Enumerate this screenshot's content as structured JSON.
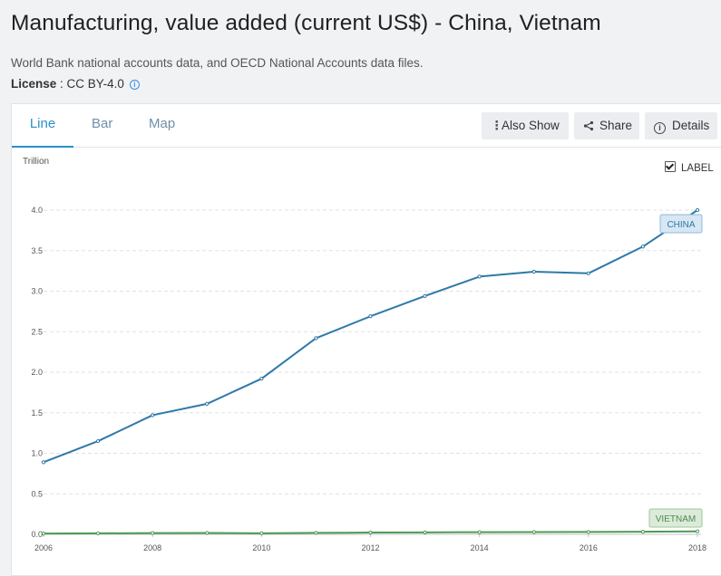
{
  "header": {
    "title": "Manufacturing, value added (current US$) - China, Vietnam",
    "source": "World Bank national accounts data, and OECD National Accounts data files.",
    "license_label": "License",
    "license_value": ": CC BY-4.0"
  },
  "tabs": [
    {
      "label": "Line",
      "active": true
    },
    {
      "label": "Bar",
      "active": false
    },
    {
      "label": "Map",
      "active": false
    }
  ],
  "toolbar": {
    "also_show": "Also Show",
    "share": "Share",
    "details": "Details"
  },
  "label_toggle": {
    "text": "LABEL",
    "checked": true
  },
  "colors": {
    "china": "#2e79a8",
    "vietnam": "#4e9a52",
    "active_tab": "#2b8fc9"
  },
  "chart_data": {
    "type": "line",
    "ylabel": "Trillion",
    "ylim": [
      0,
      4.0
    ],
    "y_ticks": [
      "0.0",
      "0.5",
      "1.0",
      "1.5",
      "2.0",
      "2.5",
      "3.0",
      "3.5",
      "4.0"
    ],
    "x_ticks": [
      "2006",
      "2008",
      "2010",
      "2012",
      "2014",
      "2016",
      "2018"
    ],
    "x": [
      2006,
      2007,
      2008,
      2009,
      2010,
      2011,
      2012,
      2013,
      2014,
      2015,
      2016,
      2017,
      2018
    ],
    "grid": true,
    "series": [
      {
        "name": "CHINA",
        "color": "#2e79a8",
        "values": [
          0.89,
          1.15,
          1.47,
          1.61,
          1.92,
          2.42,
          2.69,
          2.94,
          3.18,
          3.24,
          3.22,
          3.55,
          4.0
        ]
      },
      {
        "name": "VIETNAM",
        "color": "#4e9a52",
        "values": [
          0.01,
          0.012,
          0.016,
          0.017,
          0.013,
          0.018,
          0.022,
          0.024,
          0.027,
          0.028,
          0.03,
          0.032,
          0.037
        ]
      }
    ]
  }
}
